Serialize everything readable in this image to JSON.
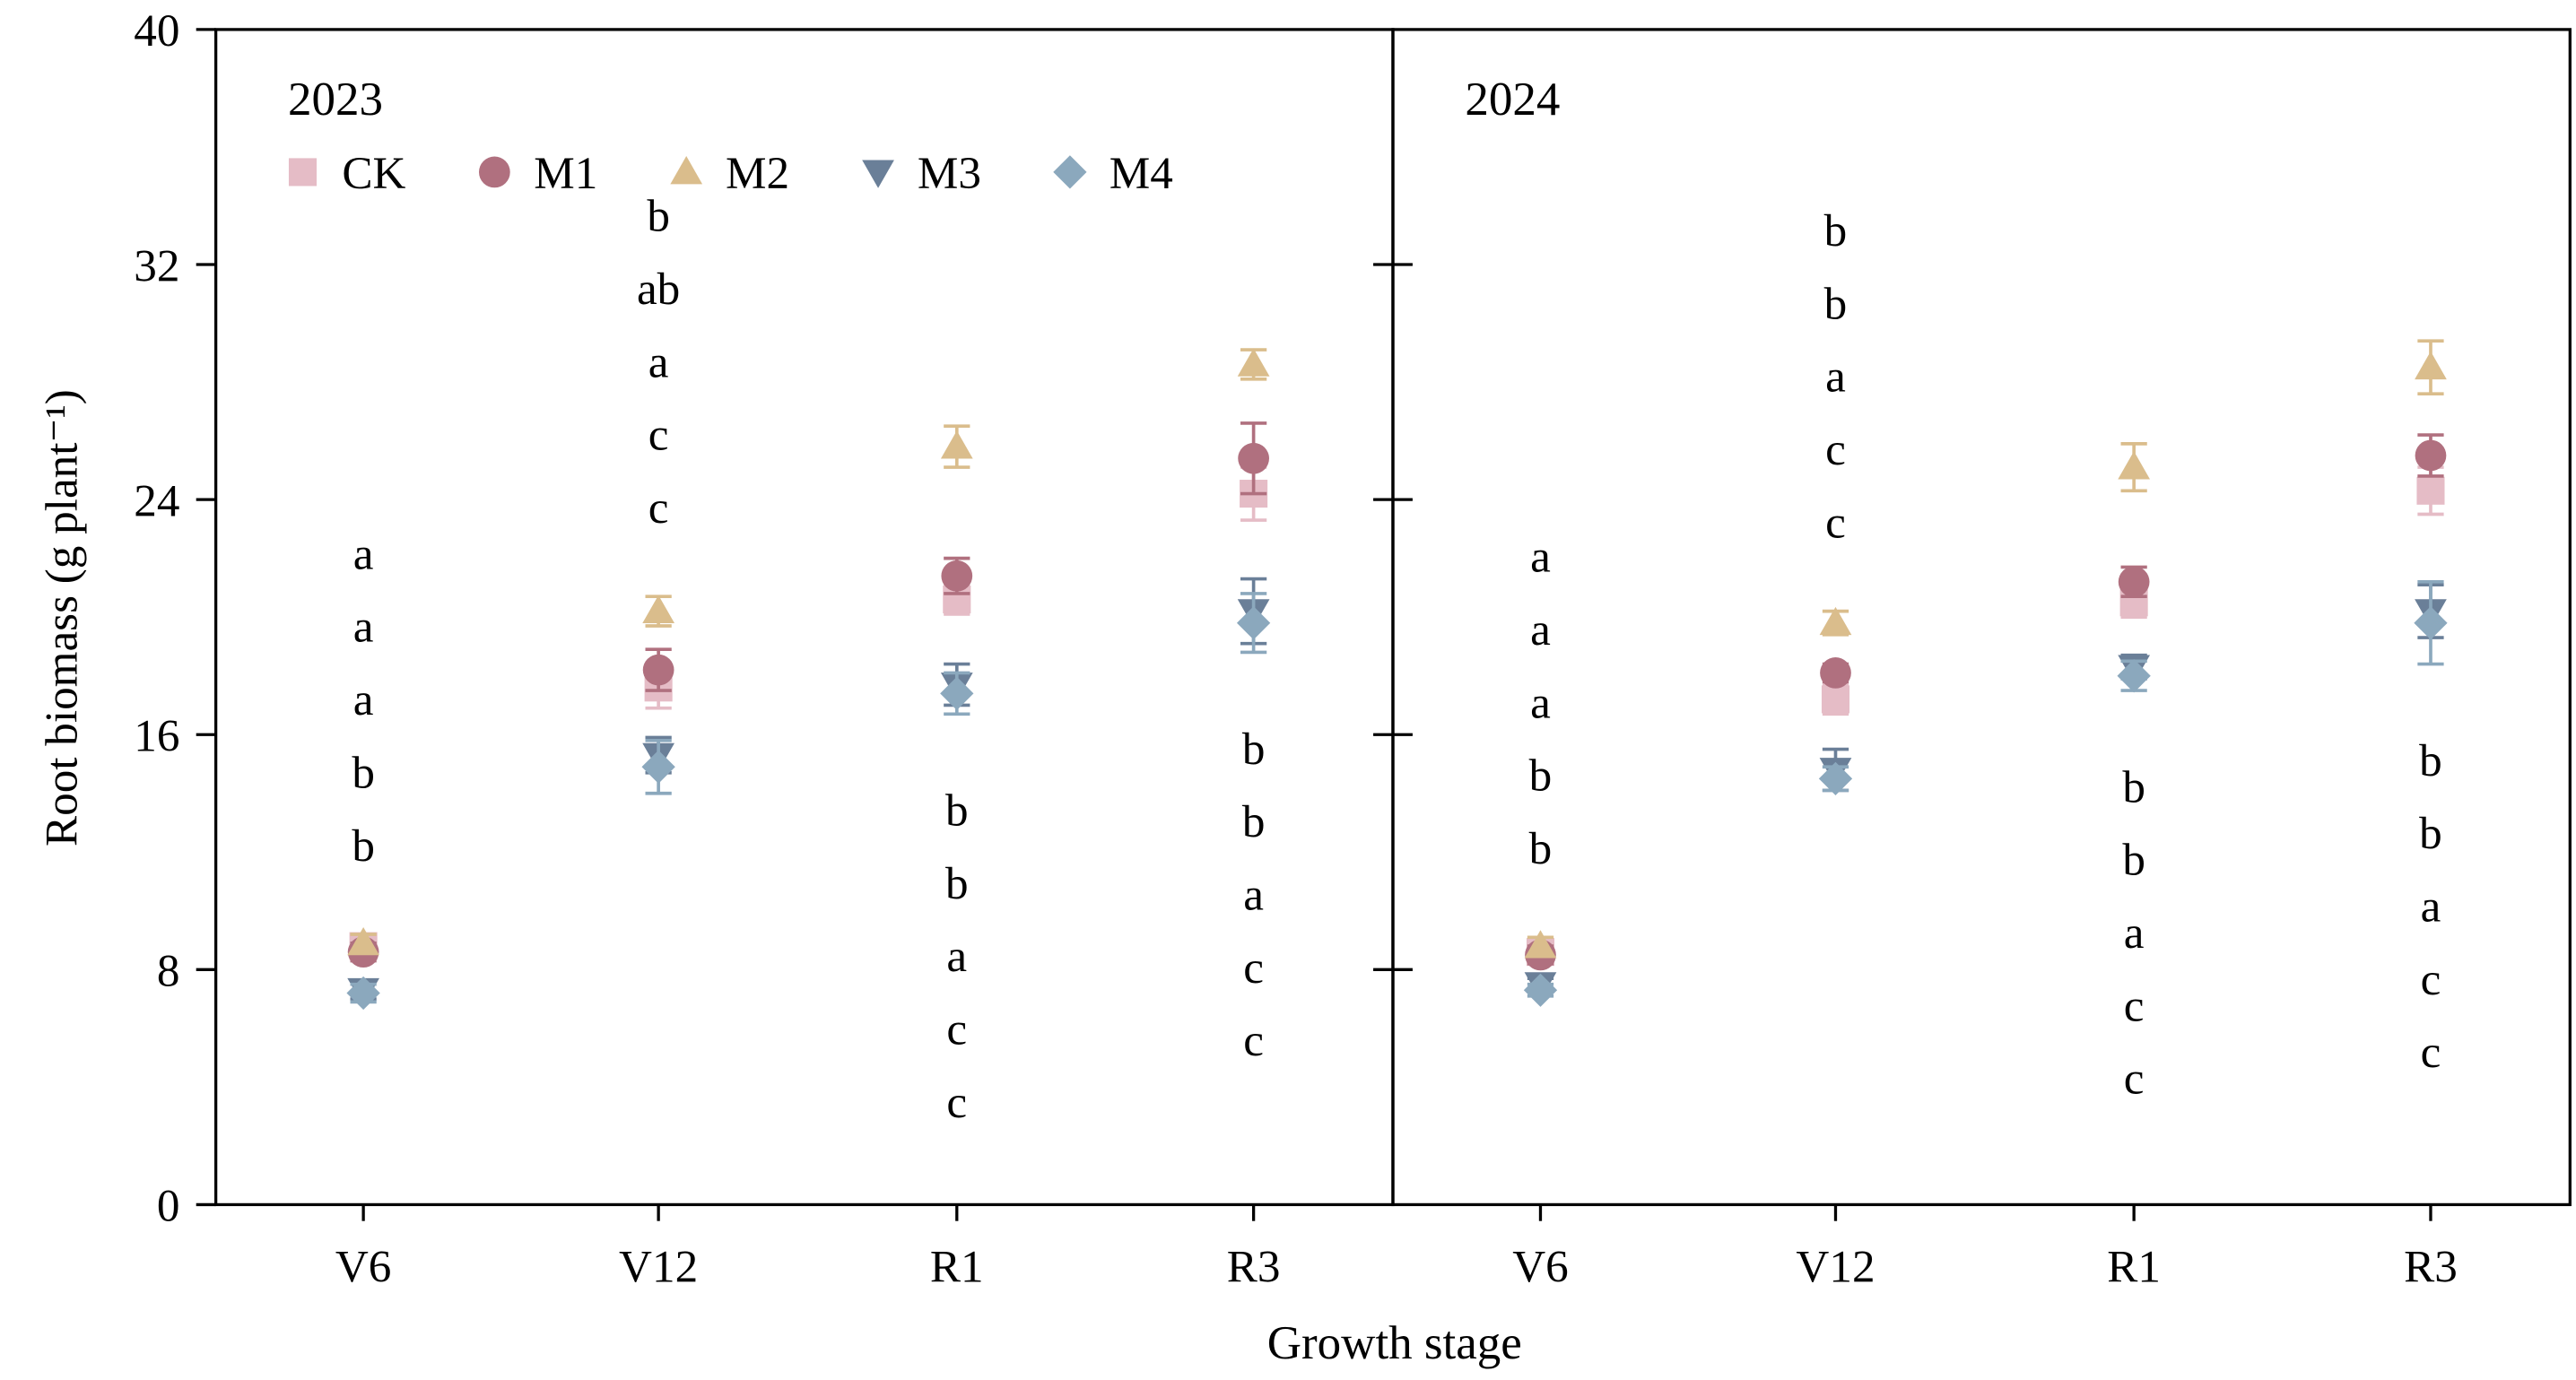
{
  "chart_data": {
    "type": "scatter",
    "ylabel": "Root biomass (g plant⁻¹)",
    "xlabel": "Growth stage",
    "ylim": [
      0,
      40
    ],
    "yticks": [
      "0",
      "8",
      "16",
      "24",
      "32",
      "40"
    ],
    "categories": [
      "V6",
      "V12",
      "R1",
      "R3"
    ],
    "legend": {
      "placement": "top-left",
      "entries": [
        {
          "name": "CK",
          "marker": "square"
        },
        {
          "name": "M1",
          "marker": "circle"
        },
        {
          "name": "M2",
          "marker": "triangle-up"
        },
        {
          "name": "M3",
          "marker": "triangle-down"
        },
        {
          "name": "M4",
          "marker": "diamond"
        }
      ]
    },
    "colors": {
      "CK": "#e5bcc6",
      "M1": "#b0707f",
      "M2": "#dabd8c",
      "M3": "#6a7f98",
      "M4": "#8ba8bd"
    },
    "grid": false,
    "panels": [
      {
        "title": "2023",
        "series": [
          {
            "name": "CK",
            "values": [
              8.8,
              17.6,
              20.6,
              24.2
            ],
            "errors": [
              0.3,
              0.7,
              0.5,
              0.9
            ]
          },
          {
            "name": "M1",
            "values": [
              8.6,
              18.2,
              21.4,
              25.4
            ],
            "errors": [
              0.3,
              0.7,
              0.6,
              1.2
            ]
          },
          {
            "name": "M2",
            "values": [
              8.9,
              20.2,
              25.8,
              28.6
            ],
            "errors": [
              0.3,
              0.5,
              0.7,
              0.5
            ]
          },
          {
            "name": "M3",
            "values": [
              7.3,
              15.3,
              17.7,
              20.2
            ],
            "errors": [
              0.3,
              0.6,
              0.7,
              1.1
            ]
          },
          {
            "name": "M4",
            "values": [
              7.2,
              14.9,
              17.4,
              19.8
            ],
            "errors": [
              0.3,
              0.9,
              0.7,
              1.0
            ]
          }
        ],
        "letters": [
          [
            "a",
            "a",
            "a",
            "b",
            "b"
          ],
          [
            "b",
            "ab",
            "a",
            "c",
            "c"
          ],
          [
            "b",
            "b",
            "a",
            "c",
            "c"
          ],
          [
            "b",
            "b",
            "a",
            "c",
            "c"
          ]
        ]
      },
      {
        "title": "2024",
        "series": [
          {
            "name": "CK",
            "values": [
              8.6,
              17.2,
              20.5,
              24.3
            ],
            "errors": [
              0.3,
              0.5,
              0.5,
              0.8
            ]
          },
          {
            "name": "M1",
            "values": [
              8.5,
              18.1,
              21.2,
              25.5
            ],
            "errors": [
              0.3,
              0.3,
              0.5,
              0.7
            ]
          },
          {
            "name": "M2",
            "values": [
              8.8,
              19.8,
              25.1,
              28.5
            ],
            "errors": [
              0.3,
              0.4,
              0.8,
              0.9
            ]
          },
          {
            "name": "M3",
            "values": [
              7.5,
              14.8,
              18.3,
              20.2
            ],
            "errors": [
              0.2,
              0.7,
              0.4,
              0.9
            ]
          },
          {
            "name": "M4",
            "values": [
              7.3,
              14.5,
              18.0,
              19.8
            ],
            "errors": [
              0.2,
              0.4,
              0.5,
              1.4
            ]
          }
        ],
        "letters": [
          [
            "a",
            "a",
            "a",
            "b",
            "b"
          ],
          [
            "b",
            "b",
            "a",
            "c",
            "c"
          ],
          [
            "b",
            "b",
            "a",
            "c",
            "c"
          ],
          [
            "b",
            "b",
            "a",
            "c",
            "c"
          ]
        ]
      }
    ]
  }
}
